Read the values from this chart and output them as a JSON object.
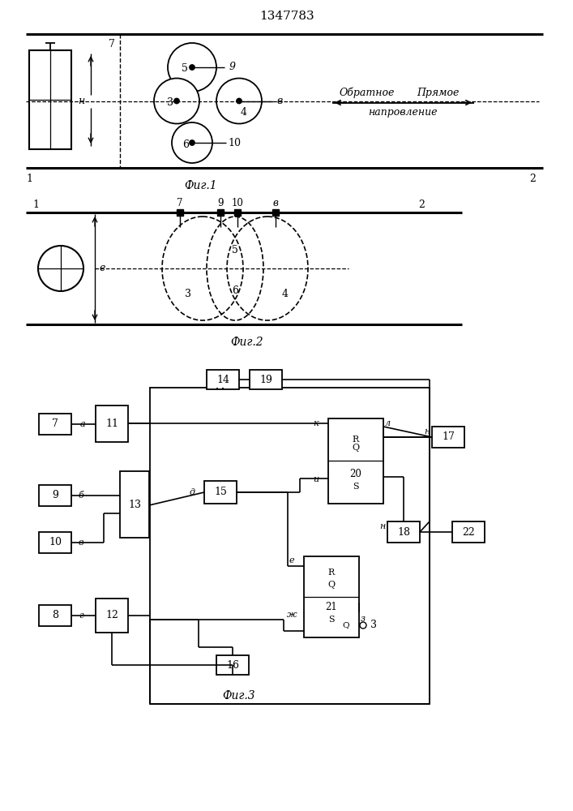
{
  "title": "1347783",
  "fig1_caption": "Фиг.1",
  "fig2_caption": "Фиг.2",
  "fig3_caption": "Фиг.3",
  "direction_left": "Обратное",
  "direction_right": "Прямое",
  "direction_bottom": "напровление",
  "bg_color": "#ffffff"
}
